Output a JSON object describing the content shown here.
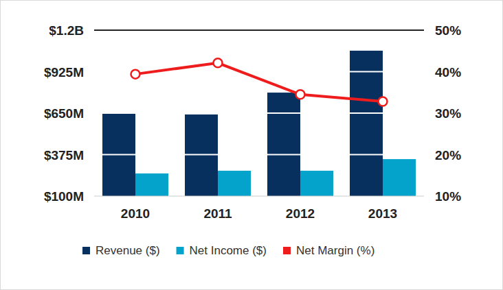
{
  "chart_data": {
    "type": "bar",
    "categories": [
      "2010",
      "2011",
      "2012",
      "2013"
    ],
    "series": [
      {
        "name": "Revenue ($)",
        "type": "bar",
        "color": "#07305e",
        "values": [
          650,
          641,
          786,
          1064
        ]
      },
      {
        "name": "Net Income ($)",
        "type": "bar",
        "color": "#03a3cc",
        "values": [
          250,
          268,
          268,
          345
        ]
      },
      {
        "name": "Net Margin (%)",
        "type": "line",
        "axis": "y2",
        "color": "#ee1c1c",
        "marker": "circle",
        "values": [
          39.4,
          42.1,
          34.5,
          32.8
        ]
      }
    ],
    "ylim": [
      100,
      1200
    ],
    "yticks": [
      {
        "value": 100,
        "label": "$100M"
      },
      {
        "value": 375,
        "label": "$375M"
      },
      {
        "value": 650,
        "label": "$650M"
      },
      {
        "value": 925,
        "label": "$925M"
      },
      {
        "value": 1200,
        "label": "$1.2B"
      }
    ],
    "y2lim": [
      10,
      50
    ],
    "y2ticks": [
      {
        "value": 10,
        "label": "10%"
      },
      {
        "value": 20,
        "label": "20%"
      },
      {
        "value": 30,
        "label": "30%"
      },
      {
        "value": 40,
        "label": "40%"
      },
      {
        "value": 50,
        "label": "50%"
      }
    ],
    "grid": true,
    "legend": "bottom"
  }
}
